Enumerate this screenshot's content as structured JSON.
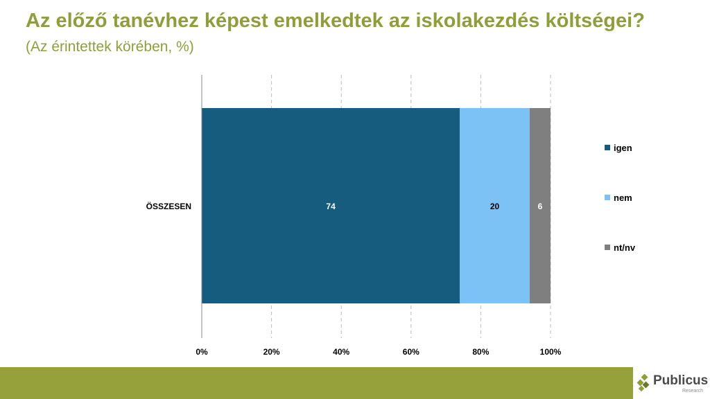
{
  "header": {
    "title": "Az előző tanévhez képest emelkedtek az iskolakezdés költségei?",
    "subtitle": "(Az érintettek körében, %)"
  },
  "chart_data": {
    "type": "bar",
    "orientation": "horizontal",
    "stacked": true,
    "categories": [
      "ÖSSZESEN"
    ],
    "series": [
      {
        "name": "igen",
        "values": [
          74
        ],
        "color": "#155c7e",
        "label_color": "#ffffff"
      },
      {
        "name": "nem",
        "values": [
          20
        ],
        "color": "#7cc2f5",
        "label_color": "#000000"
      },
      {
        "name": "nt/nv",
        "values": [
          6
        ],
        "color": "#7f7f7f",
        "label_color": "#ffffff"
      }
    ],
    "xlim": [
      0,
      100
    ],
    "xticks": [
      "0%",
      "20%",
      "40%",
      "60%",
      "80%",
      "100%"
    ],
    "grid": true,
    "legend": "right"
  },
  "logo": {
    "name": "Publicus",
    "sub": "Research"
  }
}
